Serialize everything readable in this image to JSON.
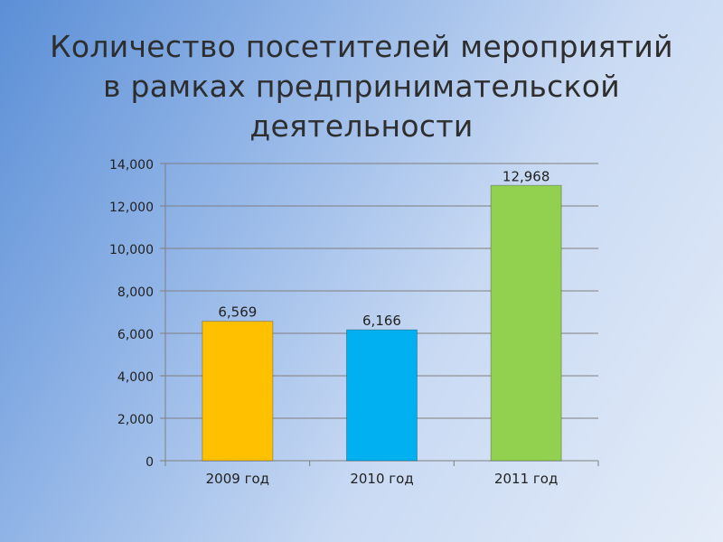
{
  "slide": {
    "title": "Количество посетителей мероприятий в рамках предпринимательской деятельности"
  },
  "chart_data": {
    "type": "bar",
    "categories": [
      "2009 год",
      "2010 год",
      "2011 год"
    ],
    "values": [
      6569,
      6166,
      12968
    ],
    "value_labels": [
      "6,569",
      "6,166",
      "12,968"
    ],
    "colors": [
      "#ffc000",
      "#00b0f0",
      "#92d050"
    ],
    "ylim": [
      0,
      14000
    ],
    "yticks": [
      0,
      2000,
      4000,
      6000,
      8000,
      10000,
      12000,
      14000
    ],
    "ytick_labels": [
      "0",
      "2,000",
      "4,000",
      "6,000",
      "8,000",
      "10,000",
      "12,000",
      "14,000"
    ],
    "grid": true,
    "legend": "none"
  }
}
